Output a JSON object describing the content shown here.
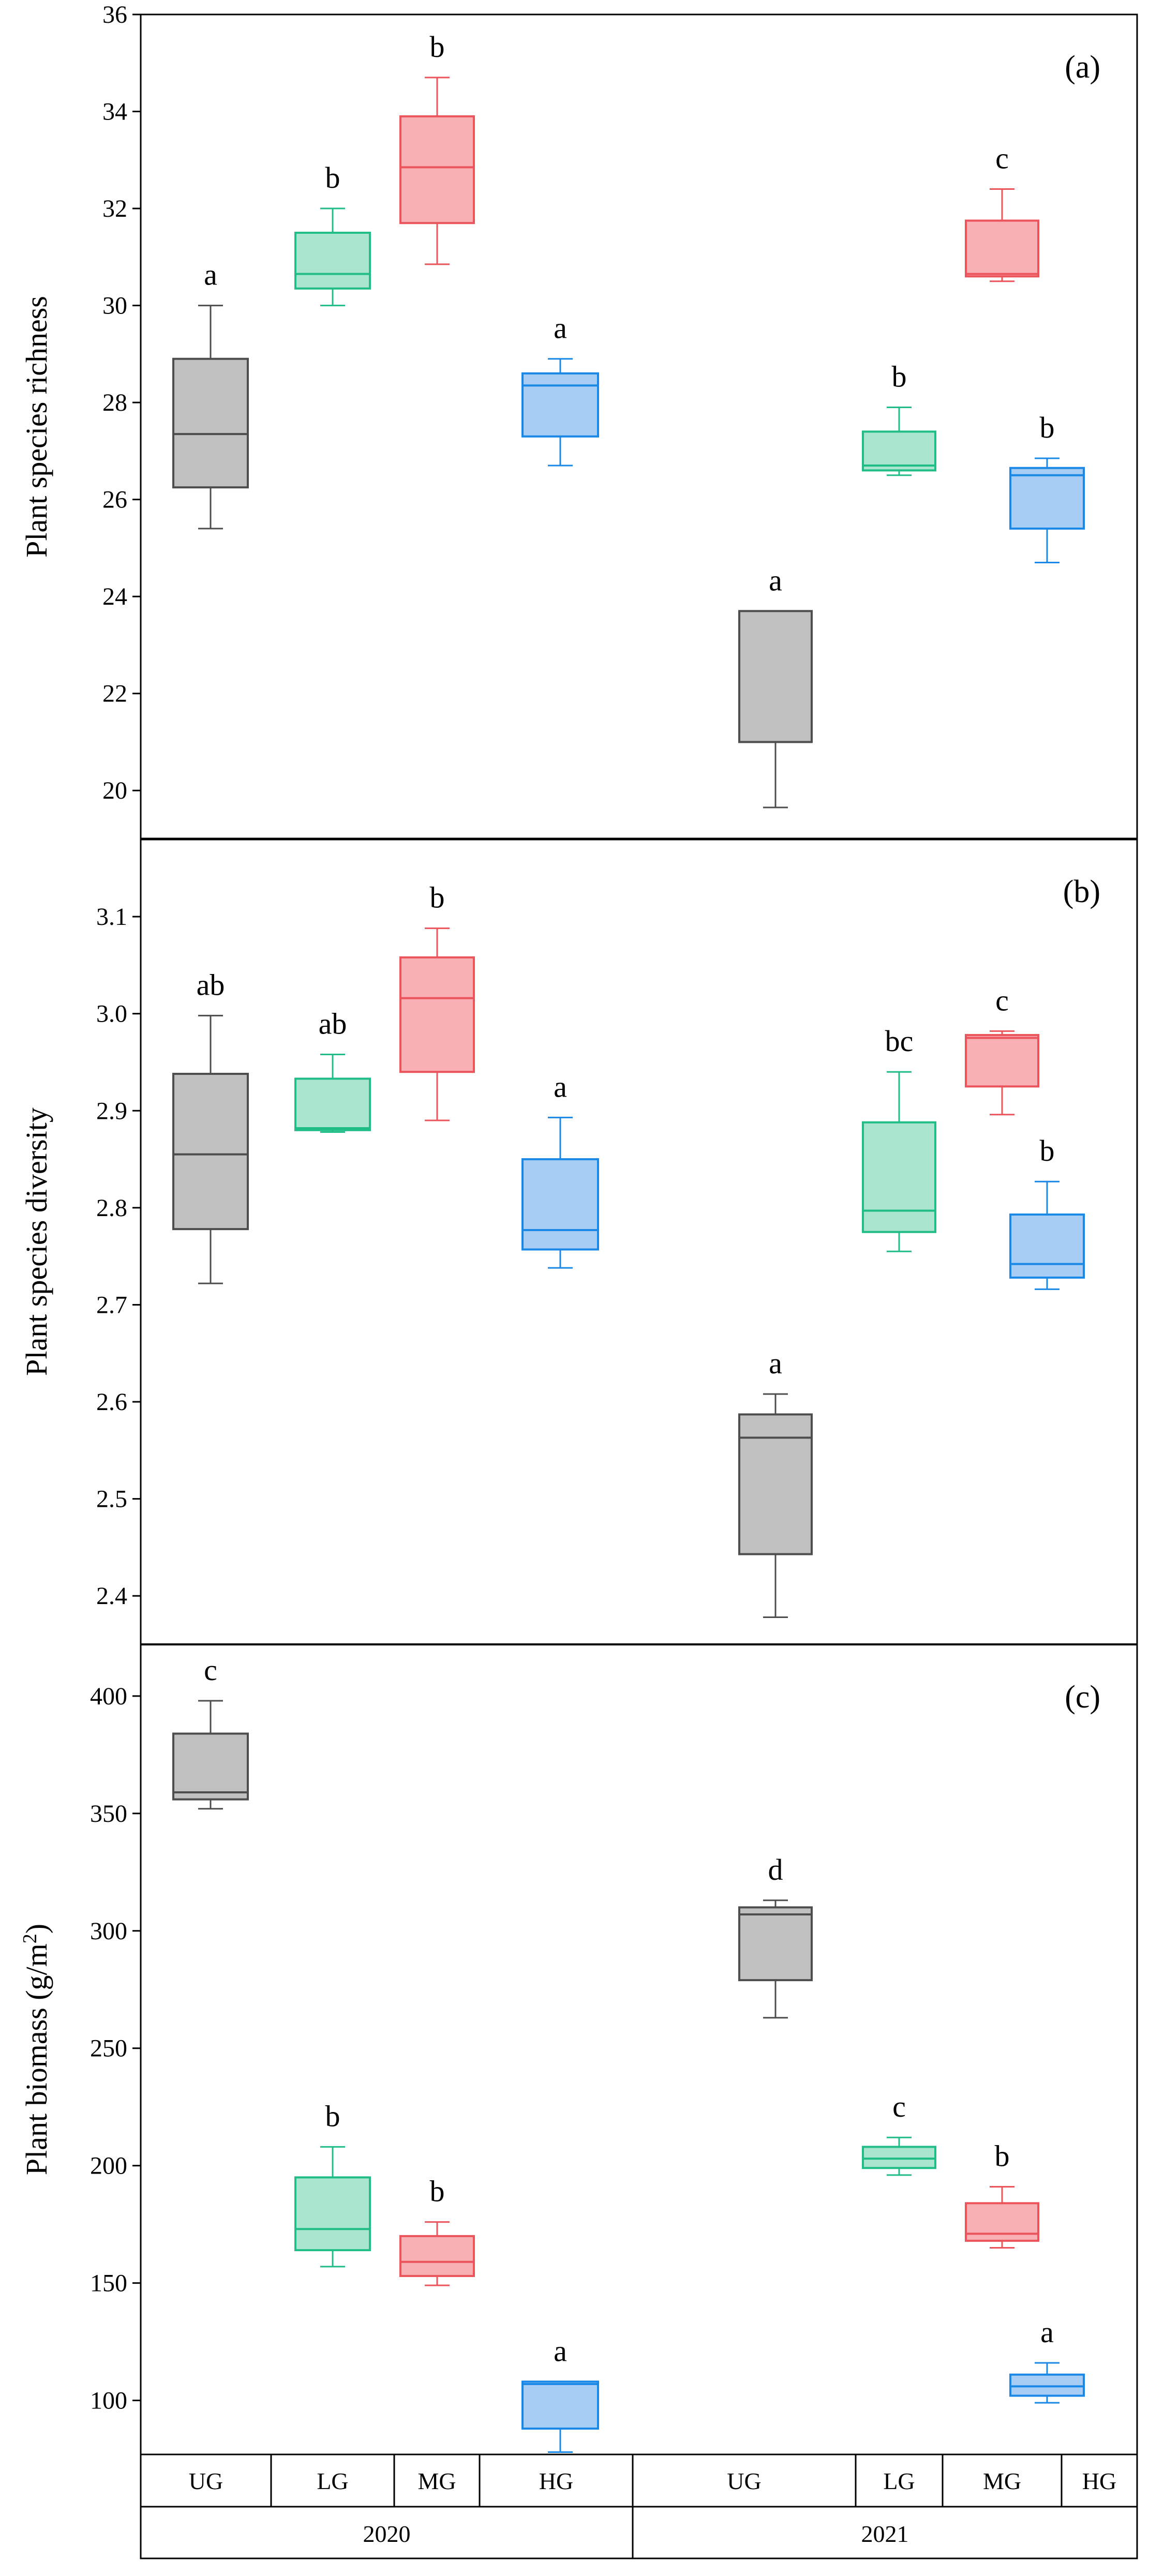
{
  "chart_data": [
    {
      "type": "box",
      "panel_label": "(a)",
      "ylabel": "Plant species richness",
      "ylim": [
        19,
        36
      ],
      "yticks": [
        20,
        22,
        24,
        26,
        28,
        30,
        32,
        34,
        36
      ],
      "ytick_labels": [
        "20",
        "22",
        "24",
        "26",
        "28",
        "30",
        "32",
        "34",
        "36"
      ],
      "boxes": [
        {
          "year": "2020",
          "group": "UG",
          "min": 25.4,
          "q1": 26.25,
          "median": 27.35,
          "q3": 28.9,
          "max": 30.0,
          "letter": "a"
        },
        {
          "year": "2020",
          "group": "LG",
          "min": 30.0,
          "q1": 30.35,
          "median": 30.65,
          "q3": 31.5,
          "max": 32.0,
          "letter": "b"
        },
        {
          "year": "2020",
          "group": "MG",
          "min": 30.85,
          "q1": 31.7,
          "median": 32.85,
          "q3": 33.9,
          "max": 34.7,
          "letter": "b"
        },
        {
          "year": "2020",
          "group": "HG",
          "min": 26.7,
          "q1": 27.3,
          "median": 28.35,
          "q3": 28.6,
          "max": 28.9,
          "letter": "a"
        },
        {
          "year": "2021",
          "group": "UG",
          "min": 19.65,
          "q1": 21.0,
          "median": 21.0,
          "q3": 23.7,
          "max": 23.7,
          "letter": "a"
        },
        {
          "year": "2021",
          "group": "LG",
          "min": 26.5,
          "q1": 26.6,
          "median": 26.7,
          "q3": 27.4,
          "max": 27.9,
          "letter": "b"
        },
        {
          "year": "2021",
          "group": "MG",
          "min": 30.5,
          "q1": 30.6,
          "median": 30.65,
          "q3": 31.75,
          "max": 32.4,
          "letter": "c"
        },
        {
          "year": "2021",
          "group": "HG",
          "min": 24.7,
          "q1": 25.4,
          "median": 26.5,
          "q3": 26.65,
          "max": 26.85,
          "letter": "b"
        }
      ]
    },
    {
      "type": "box",
      "panel_label": "(b)",
      "ylabel": "Plant species diversity",
      "ylim": [
        2.35,
        3.18
      ],
      "yticks": [
        2.4,
        2.5,
        2.6,
        2.7,
        2.8,
        2.9,
        3.0,
        3.1
      ],
      "ytick_labels": [
        "2.4",
        "2.5",
        "2.6",
        "2.7",
        "2.8",
        "2.9",
        "3.0",
        "3.1"
      ],
      "boxes": [
        {
          "year": "2020",
          "group": "UG",
          "min": 2.722,
          "q1": 2.778,
          "median": 2.855,
          "q3": 2.938,
          "max": 2.998,
          "letter": "ab"
        },
        {
          "year": "2020",
          "group": "LG",
          "min": 2.878,
          "q1": 2.88,
          "median": 2.882,
          "q3": 2.933,
          "max": 2.958,
          "letter": "ab"
        },
        {
          "year": "2020",
          "group": "MG",
          "min": 2.89,
          "q1": 2.94,
          "median": 3.016,
          "q3": 3.058,
          "max": 3.088,
          "letter": "b"
        },
        {
          "year": "2020",
          "group": "HG",
          "min": 2.738,
          "q1": 2.757,
          "median": 2.777,
          "q3": 2.85,
          "max": 2.893,
          "letter": "a"
        },
        {
          "year": "2021",
          "group": "UG",
          "min": 2.378,
          "q1": 2.443,
          "median": 2.563,
          "q3": 2.587,
          "max": 2.608,
          "letter": "a"
        },
        {
          "year": "2021",
          "group": "LG",
          "min": 2.755,
          "q1": 2.775,
          "median": 2.797,
          "q3": 2.888,
          "max": 2.94,
          "letter": "bc"
        },
        {
          "year": "2021",
          "group": "MG",
          "min": 2.896,
          "q1": 2.925,
          "median": 2.975,
          "q3": 2.978,
          "max": 2.982,
          "letter": "c"
        },
        {
          "year": "2021",
          "group": "HG",
          "min": 2.716,
          "q1": 2.728,
          "median": 2.742,
          "q3": 2.793,
          "max": 2.827,
          "letter": "b"
        }
      ]
    },
    {
      "type": "box",
      "panel_label": "(c)",
      "ylabel": "Plant biomass (g/m",
      "ylabel_sup": "2",
      "ylabel_end": ")",
      "ylim": [
        77,
        422
      ],
      "yticks": [
        100,
        150,
        200,
        250,
        300,
        350,
        400
      ],
      "ytick_labels": [
        "100",
        "150",
        "200",
        "250",
        "300",
        "350",
        "400"
      ],
      "boxes": [
        {
          "year": "2020",
          "group": "UG",
          "min": 352,
          "q1": 356,
          "median": 359,
          "q3": 384,
          "max": 398,
          "letter": "c"
        },
        {
          "year": "2020",
          "group": "LG",
          "min": 157,
          "q1": 164,
          "median": 173,
          "q3": 195,
          "max": 208,
          "letter": "b"
        },
        {
          "year": "2020",
          "group": "MG",
          "min": 149,
          "q1": 153,
          "median": 159,
          "q3": 170,
          "max": 176,
          "letter": "b"
        },
        {
          "year": "2020",
          "group": "HG",
          "min": 78,
          "q1": 88,
          "median": 107,
          "q3": 108,
          "max": 108,
          "letter": "a"
        },
        {
          "year": "2021",
          "group": "UG",
          "min": 263,
          "q1": 279,
          "median": 307,
          "q3": 310,
          "max": 313,
          "letter": "d"
        },
        {
          "year": "2021",
          "group": "LG",
          "min": 196,
          "q1": 199,
          "median": 203,
          "q3": 208,
          "max": 212,
          "letter": "c"
        },
        {
          "year": "2021",
          "group": "MG",
          "min": 165,
          "q1": 168,
          "median": 171,
          "q3": 184,
          "max": 191,
          "letter": "b"
        },
        {
          "year": "2021",
          "group": "HG",
          "min": 99,
          "q1": 102,
          "median": 106,
          "q3": 111,
          "max": 116,
          "letter": "a"
        }
      ]
    }
  ],
  "x_axis": {
    "groups": [
      "UG",
      "LG",
      "MG",
      "HG",
      "UG",
      "LG",
      "MG",
      "HG"
    ],
    "years": [
      "2020",
      "2021"
    ]
  },
  "colors": {
    "UG": {
      "fill": "#c0c0c0",
      "stroke": "#4d4d4d"
    },
    "LG": {
      "fill": "#a9e5cf",
      "stroke": "#21bd86"
    },
    "MG": {
      "fill": "#f9b0b5",
      "stroke": "#ec545c"
    },
    "HG": {
      "fill": "#a7cdf5",
      "stroke": "#1a88e6"
    }
  }
}
